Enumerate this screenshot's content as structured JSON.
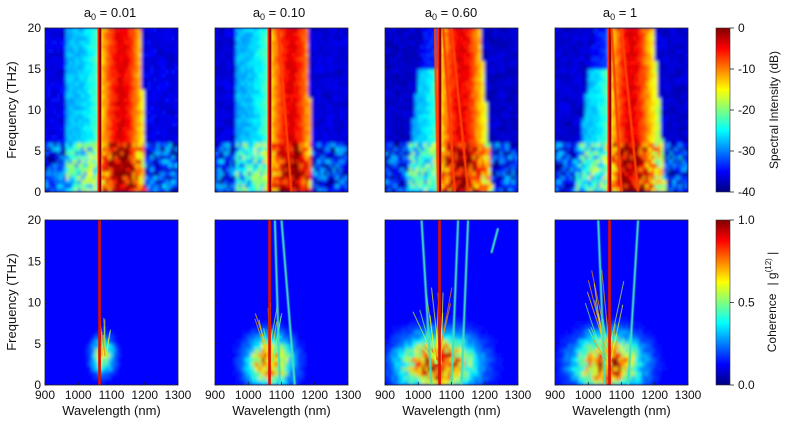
{
  "colormap": {
    "name": "jet",
    "stops": [
      "#00007f",
      "#0000ff",
      "#007fff",
      "#00ffff",
      "#7fff7f",
      "#ffff00",
      "#ff7f00",
      "#ff0000",
      "#7f0000"
    ]
  },
  "chart_data": [
    {
      "type": "heatmap",
      "row": "spectral-intensity",
      "titles": [
        "a0 = 0.01",
        "a0 = 0.10",
        "a0 = 0.60",
        "a0 = 1"
      ],
      "title_parts": [
        {
          "main": "a",
          "sub": "0",
          "value": " = 0.01"
        },
        {
          "main": "a",
          "sub": "0",
          "value": " = 0.10"
        },
        {
          "main": "a",
          "sub": "0",
          "value": " = 0.60"
        },
        {
          "main": "a",
          "sub": "0",
          "value": " = 1"
        }
      ],
      "a0_values": [
        0.01,
        0.1,
        0.6,
        1
      ],
      "ylabel": "Frequency (THz)",
      "yticks": [
        "0",
        "5",
        "10",
        "15",
        "20"
      ],
      "ylim": [
        0,
        20
      ],
      "xlim": [
        900,
        1300
      ],
      "colorbar": {
        "label": "Spectral Intensity (dB)",
        "range": [
          -40,
          0
        ],
        "ticks": [
          "0",
          "-10",
          "-20",
          "-30",
          "-40"
        ]
      },
      "pump_wavelength_nm": 1064
    },
    {
      "type": "heatmap",
      "row": "coherence",
      "ylabel": "Frequency (THz)",
      "xlabel": "Wavelength (nm)",
      "xticks": [
        "900",
        "1000",
        "1100",
        "1200",
        "1300"
      ],
      "yticks": [
        "0",
        "5",
        "10",
        "15",
        "20"
      ],
      "xlim": [
        900,
        1300
      ],
      "ylim": [
        0,
        20
      ],
      "colorbar": {
        "label_parts": {
          "main": "Coherence",
          "g": "| g",
          "sup": "(12)",
          "end": " |"
        },
        "range": [
          0,
          1
        ],
        "ticks": [
          "1.0",
          "0.5",
          "0.0"
        ]
      },
      "pump_wavelength_nm": 1064
    }
  ]
}
